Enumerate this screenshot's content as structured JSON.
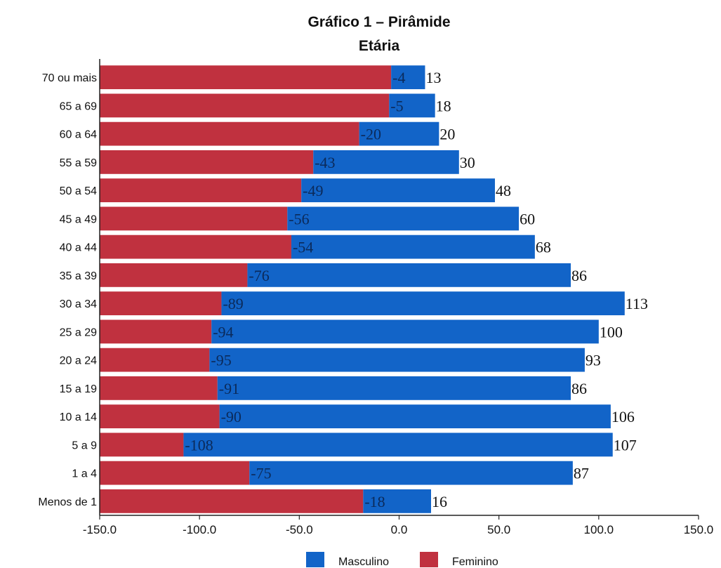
{
  "chart_data": {
    "type": "bar",
    "orientation": "horizontal",
    "stacked": true,
    "title": "Gráfico 1 – Pirâmide Etária",
    "title_lines": [
      "Gráfico 1 – Pirâmide",
      "Etária"
    ],
    "categories": [
      "70 ou mais",
      "65 a 69",
      "60 a 64",
      "55 a 59",
      "50 a 54",
      "45 a 49",
      "40 a 44",
      "35 a 39",
      "30 a 34",
      "25 a 29",
      "20 a 24",
      "15 a 19",
      "10 a 14",
      "5 a 9",
      "1 a 4",
      "Menos de 1"
    ],
    "series": [
      {
        "name": "Masculino",
        "color": "#1264c8",
        "values": [
          13,
          18,
          20,
          30,
          48,
          60,
          68,
          86,
          113,
          100,
          93,
          86,
          106,
          107,
          87,
          16
        ]
      },
      {
        "name": "Feminino",
        "color": "#c0313f",
        "values": [
          -4,
          -5,
          -20,
          -43,
          -49,
          -56,
          -54,
          -76,
          -89,
          -94,
          -95,
          -91,
          -90,
          -108,
          -75,
          -18
        ]
      }
    ],
    "xlim": [
      -150,
      150
    ],
    "xticks": [
      -150,
      -100,
      -50,
      0,
      50,
      100,
      150
    ],
    "xtick_labels": [
      "-150.0",
      "-100.0",
      "-50.0",
      "0.0",
      "50.0",
      "100.0",
      "150.0"
    ],
    "legend": {
      "position": "bottom",
      "entries": [
        "Masculino",
        "Feminino"
      ]
    },
    "grid": false,
    "xlabel": "",
    "ylabel": ""
  }
}
